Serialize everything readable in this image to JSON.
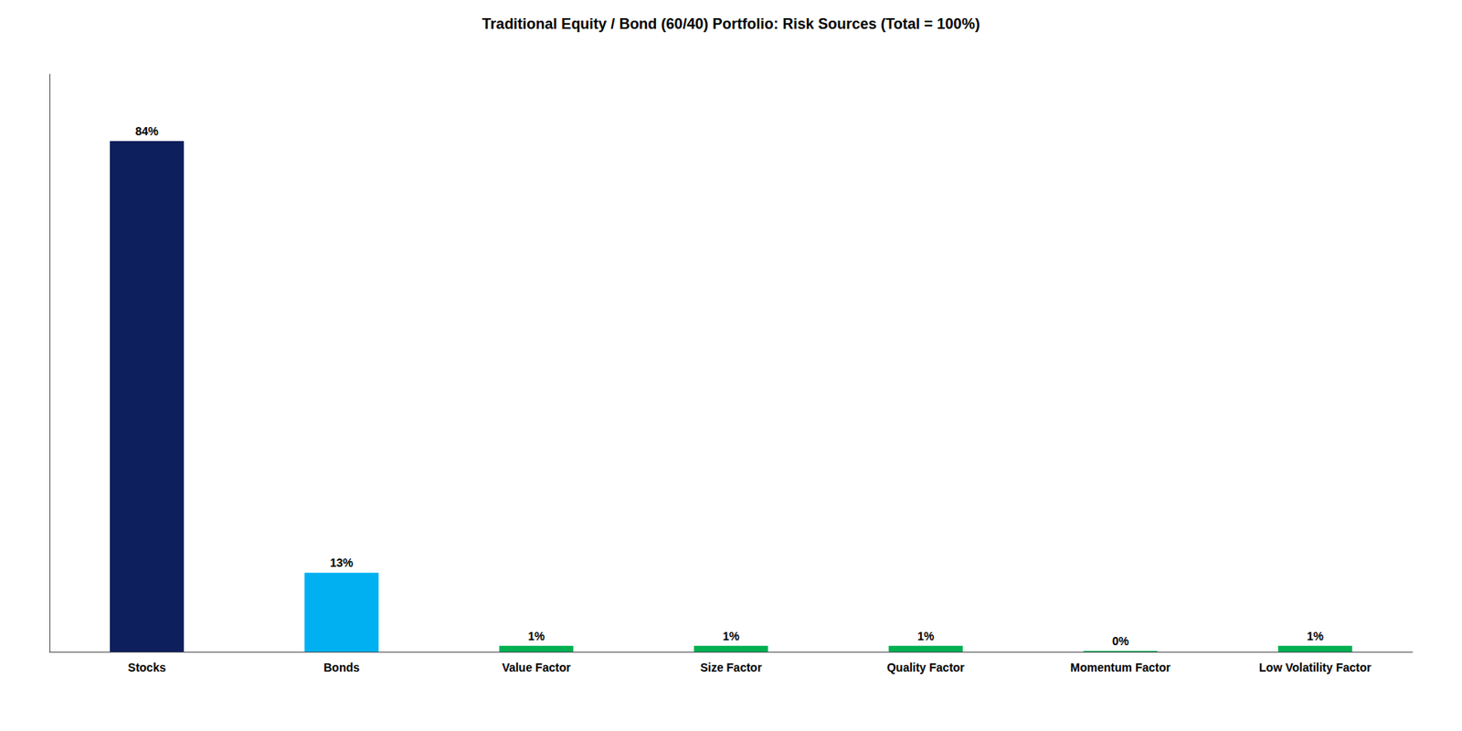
{
  "chart_data": {
    "type": "bar",
    "title": "Traditional Equity / Bond (60/40) Portfolio: Risk Sources (Total = 100%)",
    "categories": [
      "Stocks",
      "Bonds",
      "Value Factor",
      "Size Factor",
      "Quality Factor",
      "Momentum Factor",
      "Low Volatility Factor"
    ],
    "values": [
      84,
      13,
      1,
      1,
      1,
      0.15,
      1
    ],
    "value_labels": [
      "84%",
      "13%",
      "1%",
      "1%",
      "1%",
      "0%",
      "1%"
    ],
    "colors": [
      "#0d1f5c",
      "#00b0f0",
      "#00b050",
      "#00b050",
      "#00b050",
      "#00b050",
      "#00b050"
    ],
    "ylim": [
      0,
      95
    ],
    "yticks": [],
    "grid": false,
    "data_labels": true,
    "tick_labels": "x"
  }
}
